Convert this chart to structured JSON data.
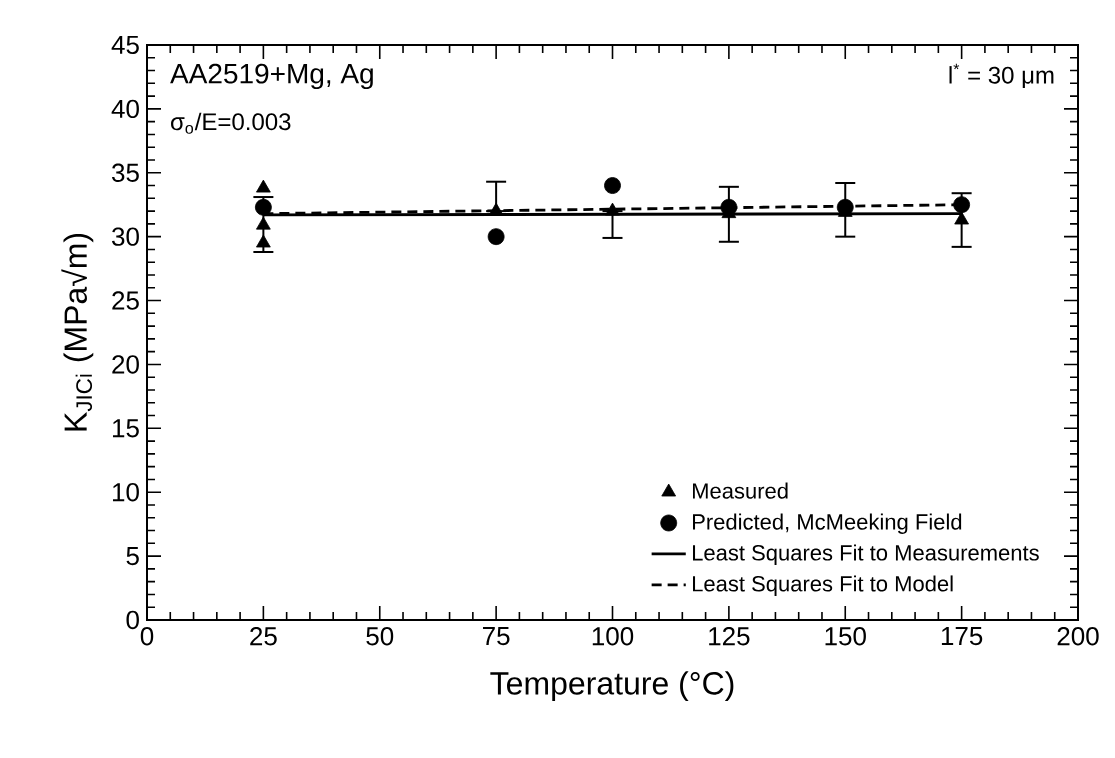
{
  "chart_data": {
    "type": "scatter",
    "xlabel": "Temperature (°C)",
    "ylabel": "K$_{JICi}$  (MPa√m)",
    "annotations": [
      "AA2519+Mg, Ag",
      "σ$_{o}$/E=0.003",
      "l$^{*}$ = 30 μm"
    ],
    "xlim": [
      0,
      200
    ],
    "xticks": [
      0,
      25,
      50,
      75,
      100,
      125,
      150,
      175,
      200
    ],
    "ylim": [
      0,
      45
    ],
    "yticks": [
      0,
      5,
      10,
      15,
      20,
      25,
      30,
      35,
      40,
      45
    ],
    "legend": "bottom right",
    "series": [
      {
        "name": "Measured",
        "marker": "triangle",
        "color": "#000000",
        "x": [
          25,
          25,
          25,
          75,
          100,
          125,
          150,
          175
        ],
        "values": [
          33.8,
          30.9,
          29.5,
          32.0,
          32.0,
          31.8,
          31.9,
          31.3
        ],
        "errors": [
          null,
          [
            28.8,
            33.1
          ],
          null,
          [
            32.0,
            34.3
          ],
          [
            29.9,
            32.0
          ],
          [
            29.6,
            33.9
          ],
          [
            30.0,
            34.2
          ],
          [
            29.2,
            33.4
          ]
        ]
      },
      {
        "name": "Predicted, McMeeking Field",
        "marker": "circle",
        "color": "#000000",
        "x": [
          25,
          75,
          100,
          125,
          150,
          175
        ],
        "values": [
          32.3,
          30.0,
          34.0,
          32.3,
          32.3,
          32.5
        ]
      },
      {
        "name": "Least Squares Fit to Measurements",
        "type": "line",
        "marker": "none",
        "line_style": "solid",
        "color": "#000000",
        "x": [
          25,
          175
        ],
        "values": [
          31.7,
          31.8
        ]
      },
      {
        "name": "Least Squares Fit to Model",
        "type": "line",
        "marker": "none",
        "line_style": "dashed",
        "color": "#000000",
        "x": [
          25,
          175
        ],
        "values": [
          31.8,
          32.5
        ]
      }
    ]
  }
}
